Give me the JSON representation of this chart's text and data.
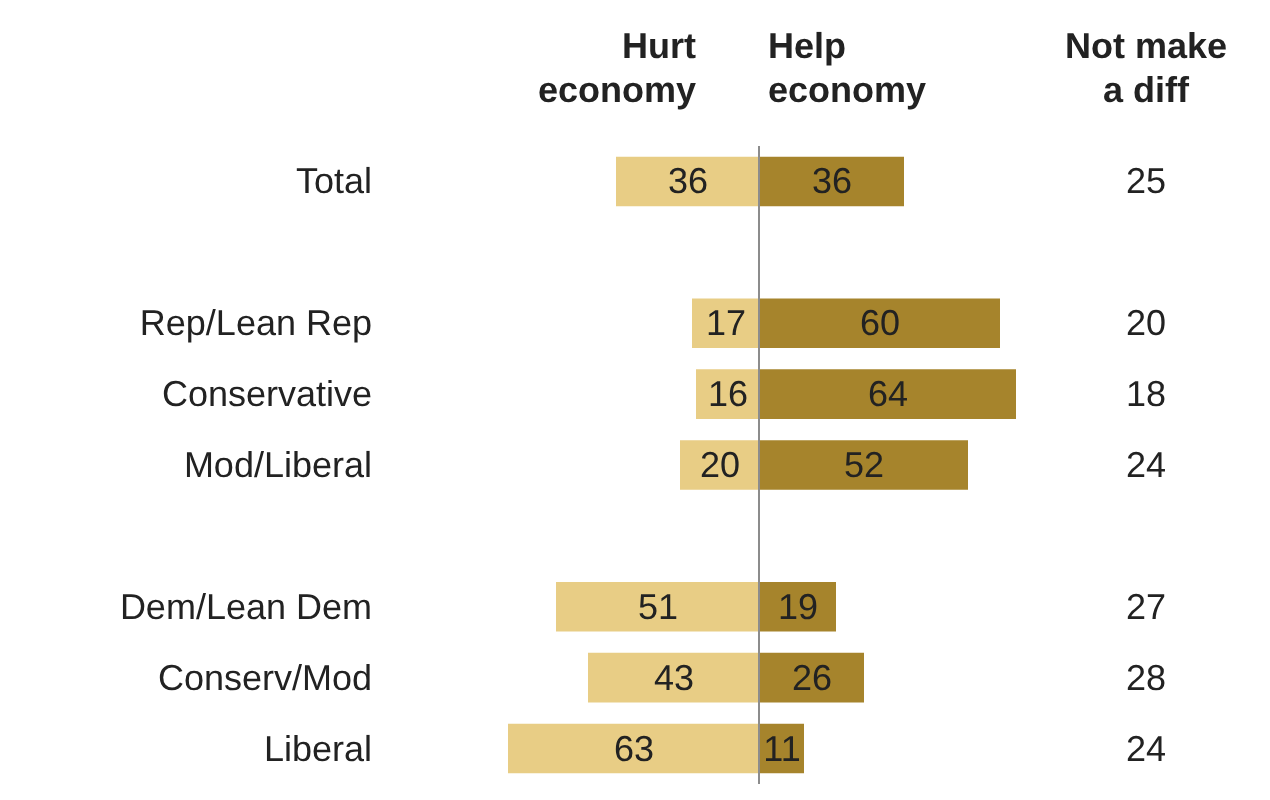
{
  "chart_data": [
    {
      "type": "bar",
      "orientation": "horizontal",
      "title": "Hurt economy",
      "categories": [
        "Total",
        null,
        "Rep/Lean Rep",
        "Conservative",
        "Mod/Liberal",
        null,
        "Dem/Lean Dem",
        "Conserv/Mod",
        "Liberal"
      ],
      "values": [
        36,
        null,
        17,
        16,
        20,
        null,
        51,
        43,
        63
      ],
      "color": "#e8cd85",
      "data_labels": true,
      "xlim": [
        63,
        0
      ],
      "tick_labels": "y",
      "ref_lines": [
        {
          "axis": "x",
          "value": 0,
          "color": "#8c8c8c"
        }
      ]
    },
    {
      "type": "bar",
      "orientation": "horizontal",
      "title": "Help economy",
      "categories": [
        null,
        null,
        null,
        null,
        null,
        null,
        null,
        null,
        null
      ],
      "values": [
        36,
        null,
        60,
        64,
        52,
        null,
        19,
        26,
        11
      ],
      "color": "#a6842c",
      "data_labels": true,
      "xlim": [
        0,
        64
      ],
      "tick_labels": false,
      "annotations": [
        "Not make a diff",
        "25",
        "20",
        "18",
        "24",
        "27",
        "28",
        "24"
      ]
    }
  ]
}
